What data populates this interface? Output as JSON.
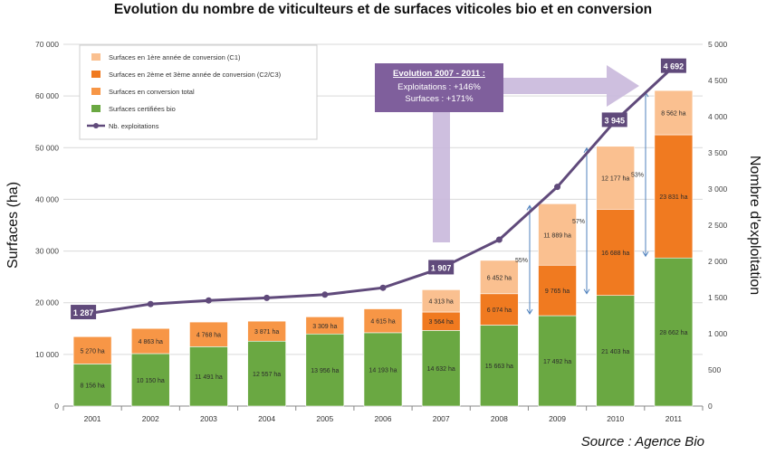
{
  "chart_data": {
    "type": "bar",
    "title": "Evolution du nombre de viticulteurs et de surfaces viticoles bio et en conversion",
    "source": "Source : Agence Bio",
    "categories": [
      "2001",
      "2002",
      "2003",
      "2004",
      "2005",
      "2006",
      "2007",
      "2008",
      "2009",
      "2010",
      "2011"
    ],
    "ylabel": "Surfaces (ha)",
    "y2label": "Nombre d'exploitation",
    "ylim": [
      0,
      70000
    ],
    "y2lim": [
      0,
      5000
    ],
    "y_ticks": [
      "0",
      "10 000",
      "20 000",
      "30 000",
      "40 000",
      "50 000",
      "60 000",
      "70 000"
    ],
    "y2_ticks": [
      "0",
      "500",
      "1 000",
      "1 500",
      "2 000",
      "2 500",
      "3 000",
      "3 500",
      "4 000",
      "4 500",
      "5 000"
    ],
    "stack_mode": "2001-2006: certifiées + conversion total; 2007-2011: certifiées + C2/C3 + C1",
    "series": [
      {
        "name": "Surfaces certifiées bio",
        "color": "#6aa842",
        "values": [
          8156,
          10150,
          11491,
          12557,
          13956,
          14193,
          14632,
          15663,
          17492,
          21403,
          28662
        ],
        "labels": [
          "8 156 ha",
          "10 150 ha",
          "11 491 ha",
          "12 557 ha",
          "13 956 ha",
          "14 193 ha",
          "14 632 ha",
          "15 663 ha",
          "17 492 ha",
          "21 403 ha",
          "28 662 ha"
        ]
      },
      {
        "name": "Surfaces en conversion total",
        "color": "#f79646",
        "values": [
          5270,
          4863,
          4768,
          3871,
          3309,
          4615,
          null,
          null,
          null,
          null,
          null
        ],
        "labels": [
          "5 270 ha",
          "4 863 ha",
          "4 768 ha",
          "3 871 ha",
          "3 309 ha",
          "4 615 ha",
          "",
          "",
          "",
          "",
          ""
        ]
      },
      {
        "name": "Surfaces en 2ème et 3ème année de conversion (C2/C3)",
        "color": "#f07a20",
        "values": [
          null,
          null,
          null,
          null,
          null,
          null,
          3564,
          6074,
          9765,
          16688,
          23831
        ],
        "labels": [
          "",
          "",
          "",
          "",
          "",
          "",
          "3 564 ha",
          "6 074 ha",
          "9 765 ha",
          "16 688 ha",
          "23 831 ha"
        ]
      },
      {
        "name": "Surfaces en 1ère année de conversion (C1)",
        "color": "#fac090",
        "values": [
          null,
          null,
          null,
          null,
          null,
          null,
          4313,
          6452,
          11889,
          12177,
          8562
        ],
        "labels": [
          "",
          "",
          "",
          "",
          "",
          "",
          "4 313 ha",
          "6 452 ha",
          "11 889 ha",
          "12 177 ha",
          "8 562 ha"
        ]
      },
      {
        "name": "Nb. exploitations",
        "type": "line",
        "color": "#604a7b",
        "axis": "right",
        "values": [
          1287,
          1410,
          1460,
          1495,
          1540,
          1635,
          1907,
          2300,
          3030,
          3945,
          4692
        ],
        "point_labels": [
          "1 287",
          "",
          "",
          "",
          "",
          "",
          "1 907",
          "",
          "",
          "3 945",
          "4 692"
        ]
      }
    ],
    "legend": {
      "placement": "top-left",
      "entries": [
        "Surfaces en 1ère année de conversion (C1)",
        "Surfaces en 2ème et 3ème année de conversion (C2/C3)",
        "Surfaces en conversion total",
        "Surfaces certifiées bio",
        "Nb. exploitations"
      ]
    },
    "pct_annotations": [
      {
        "year": "2009",
        "label": "55%"
      },
      {
        "year": "2010",
        "label": "57%"
      },
      {
        "year": "2011",
        "label": "53%"
      }
    ],
    "callout": {
      "title": "Evolution 2007 - 2011 :",
      "lines": [
        "Exploitations : +146%",
        "Surfaces : +171%"
      ],
      "box_color": "#7f5f9c",
      "arrow_color": "#c9b8dc"
    },
    "grid": true
  }
}
